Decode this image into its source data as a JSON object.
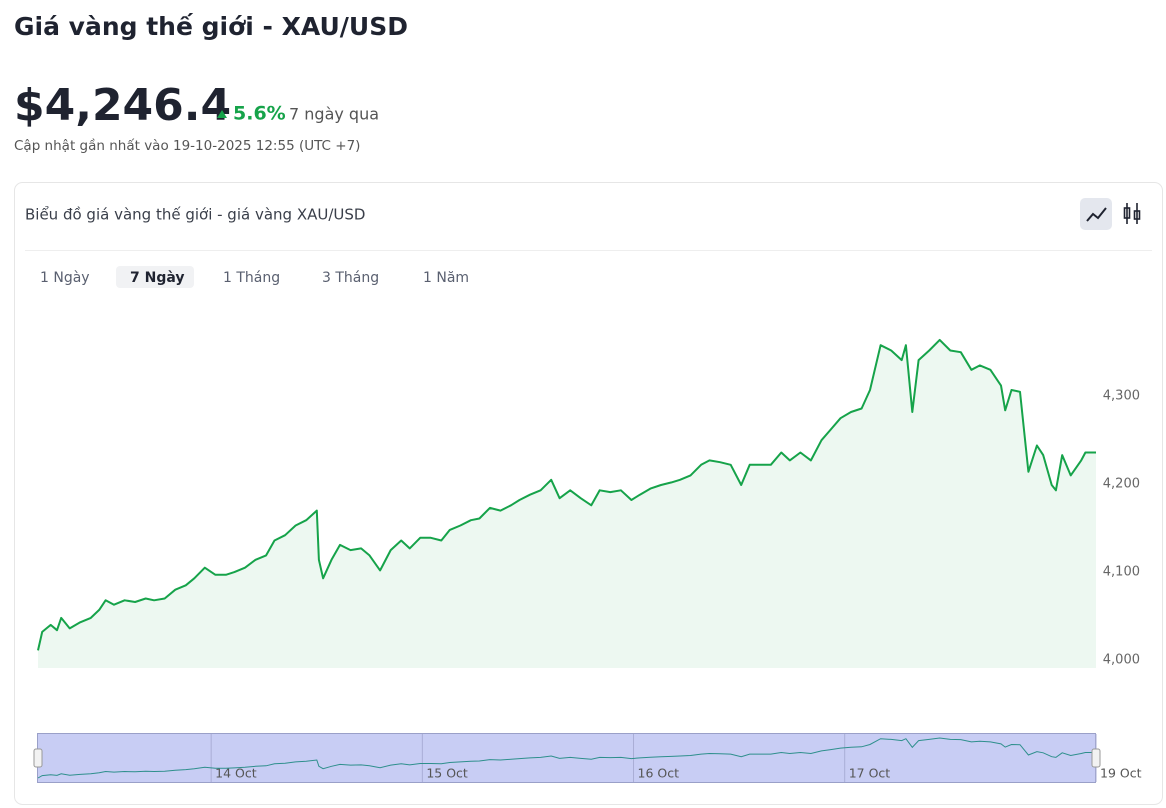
{
  "header": {
    "title": "Giá vàng thế giới - XAU/USD",
    "price": "$4,246.4",
    "change": "5.6%",
    "period": "7 ngày qua",
    "updated": "Cập nhật gần nhất vào 19-10-2025 12:55 (UTC +7)"
  },
  "card": {
    "title": "Biểu đồ giá vàng thế giới - giá vàng XAU/USD",
    "tabs": [
      "1 Ngày",
      "7 Ngày",
      "1 Tháng",
      "3 Tháng",
      "1 Năm"
    ],
    "active_tab": 1
  },
  "chart_data": {
    "type": "line",
    "color": "#16a34a",
    "x": [
      13.18,
      13.2,
      13.24,
      13.27,
      13.29,
      13.33,
      13.38,
      13.43,
      13.47,
      13.5,
      13.54,
      13.59,
      13.64,
      13.69,
      13.73,
      13.78,
      13.83,
      13.88,
      13.92,
      13.97,
      14.02,
      14.07,
      14.11,
      14.16,
      14.21,
      14.26,
      14.3,
      14.35,
      14.4,
      14.45,
      14.5,
      14.51,
      14.53,
      14.57,
      14.61,
      14.66,
      14.71,
      14.75,
      14.8,
      14.85,
      14.9,
      14.94,
      14.99,
      15.04,
      15.09,
      15.13,
      15.18,
      15.23,
      15.27,
      15.32,
      15.37,
      15.42,
      15.46,
      15.51,
      15.56,
      15.61,
      15.65,
      15.7,
      15.75,
      15.8,
      15.84,
      15.89,
      15.94,
      15.99,
      16.03,
      16.08,
      16.13,
      16.18,
      16.22,
      16.27,
      16.32,
      16.36,
      16.41,
      16.46,
      16.51,
      16.55,
      16.6,
      16.65,
      16.7,
      16.74,
      16.79,
      16.84,
      16.89,
      16.93,
      16.98,
      17.03,
      17.08,
      17.12,
      17.17,
      17.22,
      17.27,
      17.29,
      17.32,
      17.35,
      17.4,
      17.45,
      17.5,
      17.55,
      17.6,
      17.64,
      17.69,
      17.74,
      17.76,
      17.79,
      17.83,
      17.87,
      17.91,
      17.94,
      17.98,
      18.0,
      18.03,
      18.07,
      18.12,
      18.14,
      18.19
    ],
    "values": [
      4011,
      4032,
      4040,
      4034,
      4048,
      4036,
      4043,
      4048,
      4057,
      4068,
      4063,
      4068,
      4066,
      4070,
      4068,
      4070,
      4080,
      4085,
      4093,
      4105,
      4097,
      4097,
      4100,
      4105,
      4114,
      4119,
      4136,
      4142,
      4153,
      4159,
      4170,
      4114,
      4093,
      4114,
      4131,
      4125,
      4127,
      4119,
      4102,
      4125,
      4136,
      4127,
      4139,
      4139,
      4136,
      4148,
      4153,
      4159,
      4161,
      4173,
      4170,
      4176,
      4182,
      4188,
      4193,
      4205,
      4184,
      4193,
      4184,
      4176,
      4193,
      4191,
      4193,
      4182,
      4188,
      4195,
      4199,
      4202,
      4205,
      4210,
      4222,
      4227,
      4225,
      4222,
      4199,
      4222,
      4222,
      4222,
      4236,
      4227,
      4236,
      4227,
      4250,
      4261,
      4275,
      4282,
      4286,
      4307,
      4358,
      4352,
      4341,
      4358,
      4282,
      4341,
      4352,
      4364,
      4352,
      4350,
      4330,
      4335,
      4330,
      4312,
      4284,
      4307,
      4305,
      4214,
      4244,
      4233,
      4199,
      4193,
      4233,
      4210,
      4227,
      4236,
      4236
    ],
    "xlim": [
      13.18,
      18.19
    ],
    "xticks": [
      {
        "value": 14,
        "label": "14 Oct"
      },
      {
        "value": 15,
        "label": "15 Oct"
      },
      {
        "value": 16,
        "label": "16 Oct"
      },
      {
        "value": 17,
        "label": "17 Oct"
      },
      {
        "value": 18.19,
        "label": "19 Oct"
      }
    ],
    "ylim": [
      3991,
      4398
    ],
    "yticks": [
      {
        "value": 4000,
        "label": "4,000"
      },
      {
        "value": 4100,
        "label": "4,100"
      },
      {
        "value": 4200,
        "label": "4,200"
      },
      {
        "value": 4300,
        "label": "4,300"
      }
    ],
    "grid": false
  }
}
